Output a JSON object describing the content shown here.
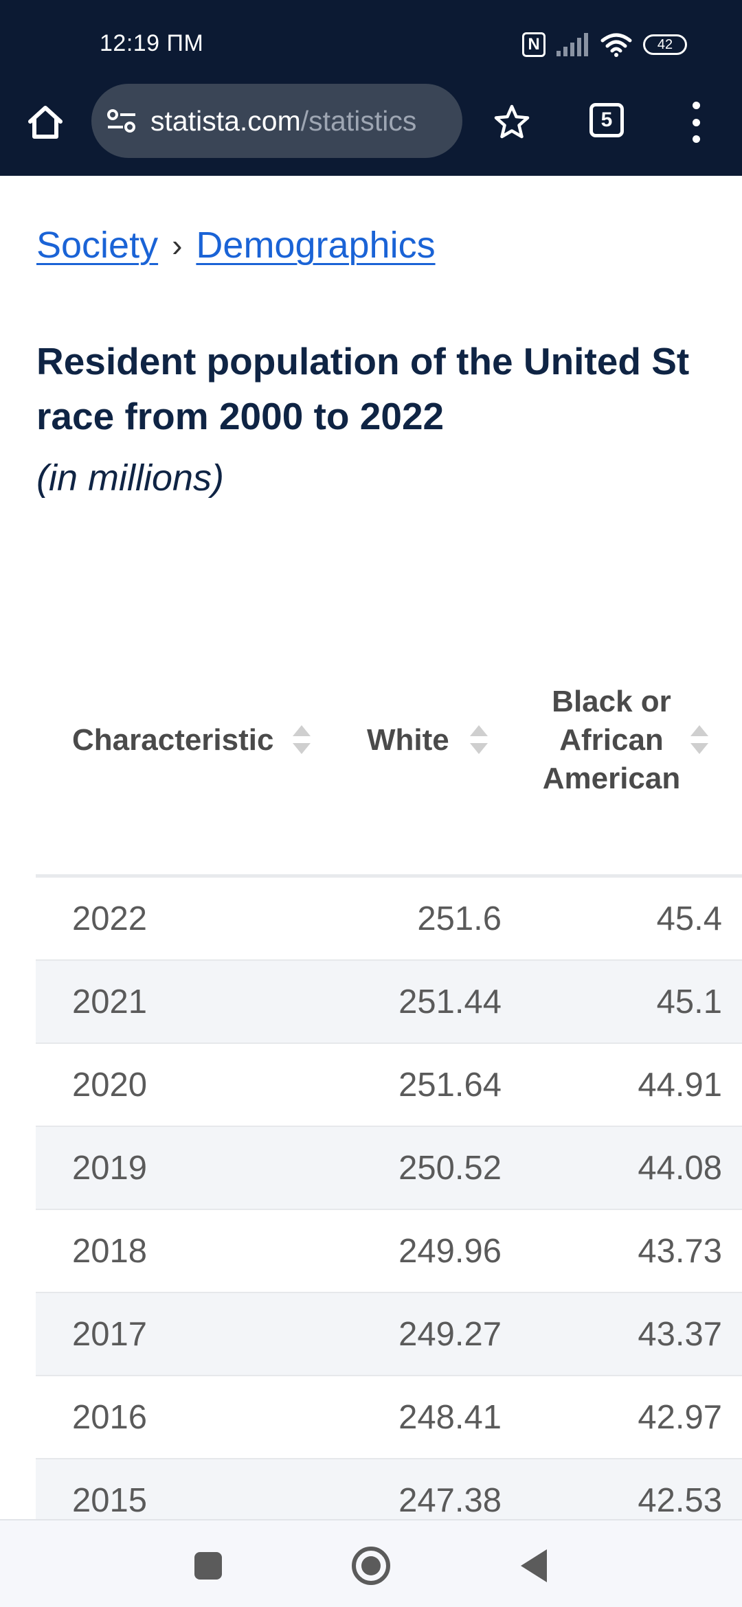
{
  "status_bar": {
    "time": "12:19 ПМ",
    "nfc_label": "N",
    "battery": "42",
    "icons": [
      "nfc-icon",
      "signal-icon",
      "wifi-icon",
      "battery-icon"
    ]
  },
  "browser": {
    "url_host": "statista.com",
    "url_path": "/statistics",
    "tab_count": "5",
    "icons": [
      "home-icon",
      "site-settings-icon",
      "star-icon",
      "tabs-icon",
      "more-menu-icon"
    ]
  },
  "breadcrumb": {
    "items": [
      "Society",
      "Demographics"
    ],
    "separator": "›"
  },
  "title": {
    "line1": "Resident population of the United St",
    "line2": "race from 2000 to 2022"
  },
  "subtitle": "(in millions)",
  "table": {
    "headers": {
      "characteristic": "Characteristic",
      "white": "White",
      "black_line1": "Black or",
      "black_line2": "African",
      "black_line3": "American"
    },
    "rows": [
      {
        "year": "2022",
        "white": "251.6",
        "black": "45.4"
      },
      {
        "year": "2021",
        "white": "251.44",
        "black": "45.1"
      },
      {
        "year": "2020",
        "white": "251.64",
        "black": "44.91"
      },
      {
        "year": "2019",
        "white": "250.52",
        "black": "44.08"
      },
      {
        "year": "2018",
        "white": "249.96",
        "black": "43.73"
      },
      {
        "year": "2017",
        "white": "249.27",
        "black": "43.37"
      },
      {
        "year": "2016",
        "white": "248.41",
        "black": "42.97"
      },
      {
        "year": "2015",
        "white": "247.38",
        "black": "42.53"
      }
    ]
  },
  "colors": {
    "topbar": "#0c1a33",
    "link": "#1a63d6",
    "title": "#0f2444",
    "row_alt": "#f3f5f8"
  }
}
